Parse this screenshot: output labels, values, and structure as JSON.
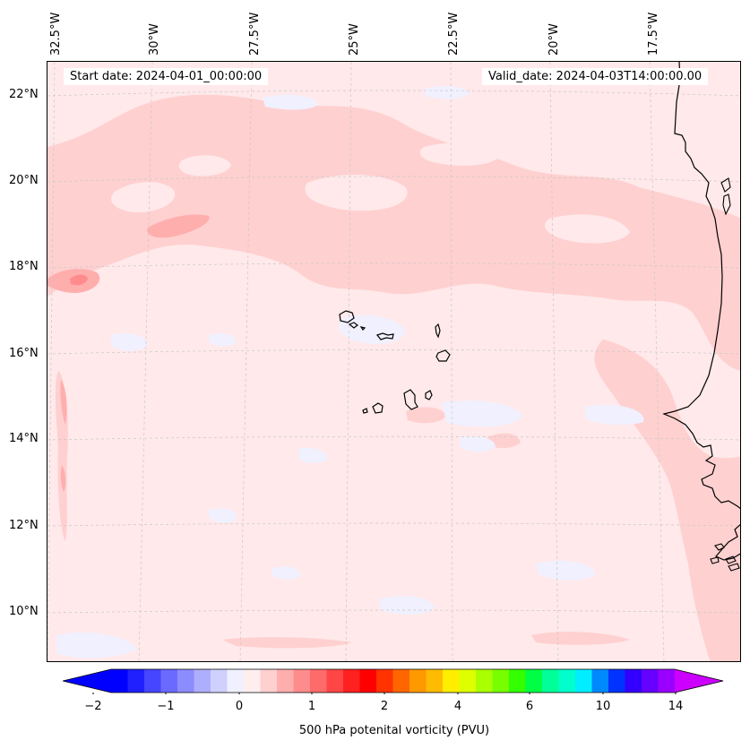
{
  "map": {
    "start_date_label": "Start date: 2024-04-01_00:00:00",
    "valid_date_label": "Valid_date: 2024-04-03T14:00:00.00",
    "longitude_labels": [
      "32.5°W",
      "30°W",
      "27.5°W",
      "25°W",
      "22.5°W",
      "20°W",
      "17.5°W"
    ],
    "latitude_labels": [
      "22°N",
      "20°N",
      "18°N",
      "16°N",
      "14°N",
      "12°N",
      "10°N"
    ],
    "background_color": "#ffe9ea",
    "coastline_color": "#000000",
    "gridlines": true
  },
  "colorbar": {
    "label": "500 hPa potenital vorticity (PVU)",
    "tick_labels": [
      "−2",
      "−1",
      "0",
      "1",
      "2",
      "4",
      "6",
      "10",
      "14"
    ],
    "colors": [
      "#0000ff",
      "#2020ff",
      "#4646ff",
      "#6a6aff",
      "#8c8cff",
      "#aeaeff",
      "#d0d0ff",
      "#f0f0ff",
      "#ffeeee",
      "#ffd0d0",
      "#ffaeae",
      "#ff8c8c",
      "#ff6a6a",
      "#ff4646",
      "#ff2020",
      "#ff0000",
      "#ff3300",
      "#ff6600",
      "#ff9900",
      "#ffbb00",
      "#ffee00",
      "#ddff00",
      "#aaff00",
      "#77ff00",
      "#33ff00",
      "#00ff44",
      "#00ff99",
      "#00ffcc",
      "#00eeff",
      "#0088ff",
      "#0033ff",
      "#3300ff",
      "#6600ff",
      "#9900ff"
    ],
    "extend_low_color": "#0000ff",
    "extend_high_color": "#cc00ff"
  }
}
